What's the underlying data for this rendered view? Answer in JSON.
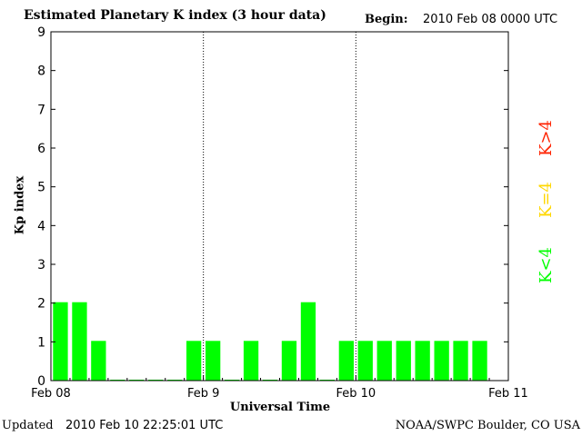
{
  "header": {
    "title": "Estimated Planetary K index (3 hour data)",
    "begin_label": "Begin:",
    "begin_value": "2010 Feb 08 0000 UTC"
  },
  "footer": {
    "updated_label": "Updated",
    "updated_value": "2010 Feb 10 22:25:01 UTC",
    "credit": "NOAA/SWPC Boulder, CO USA"
  },
  "legend": {
    "items": [
      {
        "label": "K<4",
        "color": "#00ff00"
      },
      {
        "label": "K=4",
        "color": "#ffd700"
      },
      {
        "label": "K>4",
        "color": "#ff2200"
      }
    ]
  },
  "chart_data": {
    "type": "bar",
    "title": "Estimated Planetary K index (3 hour data)",
    "xlabel": "Universal Time",
    "ylabel": "Kp index",
    "ylim": [
      0,
      9
    ],
    "yticks": [
      0,
      1,
      2,
      3,
      4,
      5,
      6,
      7,
      8,
      9
    ],
    "xticks": [
      "Feb 08",
      "Feb 9",
      "Feb 10",
      "Feb 11"
    ],
    "bar_color": "#00ff00",
    "grid": "dotted vertical lines at day boundaries",
    "values": [
      2,
      2,
      1,
      0,
      0,
      0,
      0,
      1,
      1,
      0,
      1,
      0,
      1,
      2,
      0,
      1,
      1,
      1,
      1,
      1,
      1,
      1,
      1
    ]
  }
}
